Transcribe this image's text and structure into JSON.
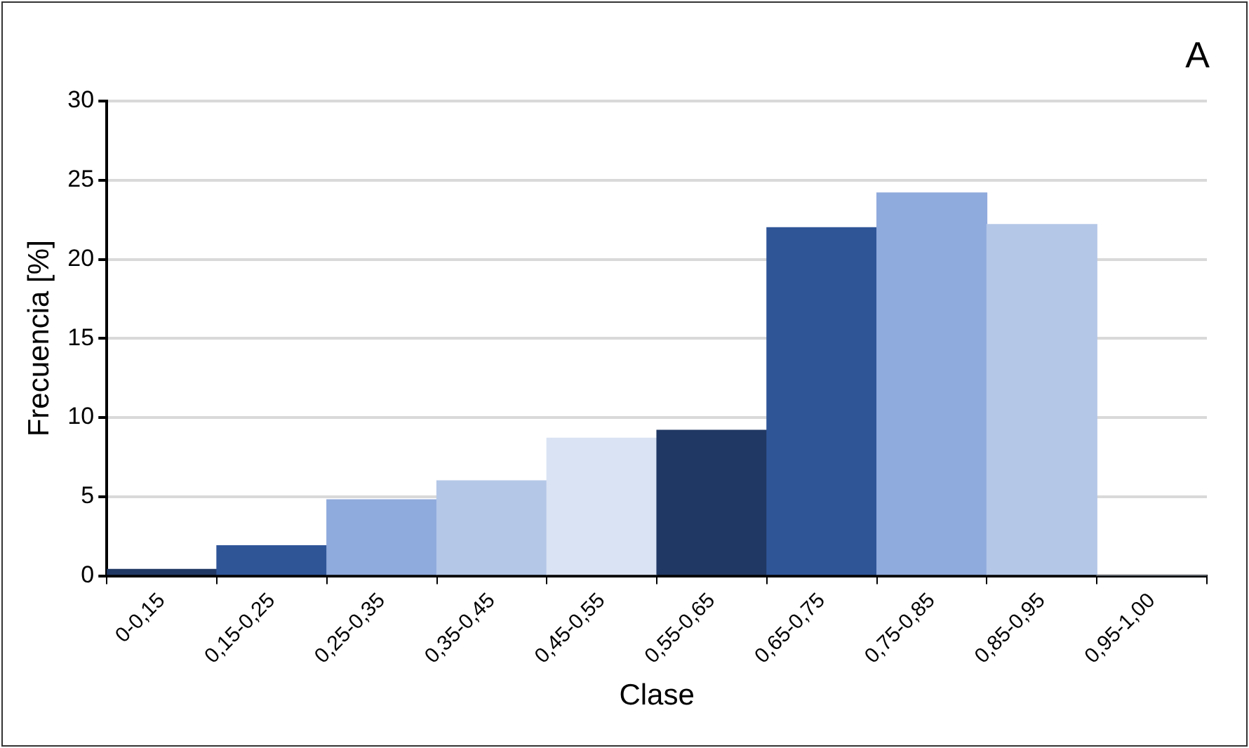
{
  "chart_data": {
    "type": "bar",
    "xlabel": "Clase",
    "ylabel": "Frecuencia [%]",
    "annotations": [
      "A"
    ],
    "categories": [
      "0-0,15",
      "0,15-0,25",
      "0,25-0,35",
      "0,35-0,45",
      "0,45-0,55",
      "0,55-0,65",
      "0,65-0,75",
      "0,75-0,85",
      "0,85-0,95",
      "0,95-1,00"
    ],
    "values": [
      0.4,
      1.9,
      4.8,
      6.0,
      8.7,
      9.2,
      22.0,
      24.2,
      22.2,
      0
    ],
    "colors": [
      "#203864",
      "#2f5597",
      "#8faadc",
      "#b4c7e7",
      "#dae3f3",
      "#203864",
      "#2f5597",
      "#8faadc",
      "#b4c7e7",
      "#dae3f3"
    ],
    "ylim": [
      0,
      30
    ],
    "yticks": [
      0,
      5,
      10,
      15,
      20,
      25,
      30
    ],
    "grid": "y",
    "legend": false
  }
}
